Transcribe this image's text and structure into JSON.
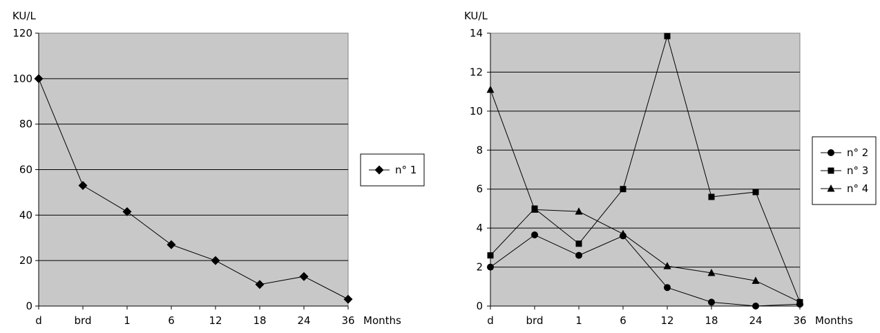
{
  "chart_data": [
    {
      "type": "line",
      "ylabel": "KU/L",
      "xlabel": "Months",
      "categories": [
        "d",
        "brd",
        "1",
        "6",
        "12",
        "18",
        "24",
        "36"
      ],
      "ylim": [
        0,
        120
      ],
      "yticks": [
        0,
        20,
        40,
        60,
        80,
        100,
        120
      ],
      "grid": true,
      "legend": "right",
      "plot_background": "#c8c8c8",
      "series": [
        {
          "name": "n° 1",
          "marker": "diamond",
          "values": [
            100,
            53,
            41.5,
            27,
            20,
            9.5,
            13,
            3
          ]
        }
      ]
    },
    {
      "type": "line",
      "ylabel": "KU/L",
      "xlabel": "Months",
      "categories": [
        "d",
        "brd",
        "1",
        "6",
        "12",
        "18",
        "24",
        "36"
      ],
      "ylim": [
        0,
        14
      ],
      "yticks": [
        0,
        2,
        4,
        6,
        8,
        10,
        12,
        14
      ],
      "grid": true,
      "legend": "right",
      "plot_background": "#c8c8c8",
      "series": [
        {
          "name": "n° 2",
          "marker": "circle",
          "values": [
            2,
            3.65,
            2.6,
            3.6,
            0.95,
            0.2,
            0,
            0.1
          ]
        },
        {
          "name": "n° 3",
          "marker": "square",
          "values": [
            2.6,
            5,
            3.2,
            6,
            13.85,
            5.6,
            5.85,
            0.2
          ]
        },
        {
          "name": "n° 4",
          "marker": "triangle",
          "values": [
            11.1,
            4.95,
            4.85,
            3.7,
            2.05,
            1.7,
            1.3,
            0.2
          ]
        }
      ]
    }
  ]
}
